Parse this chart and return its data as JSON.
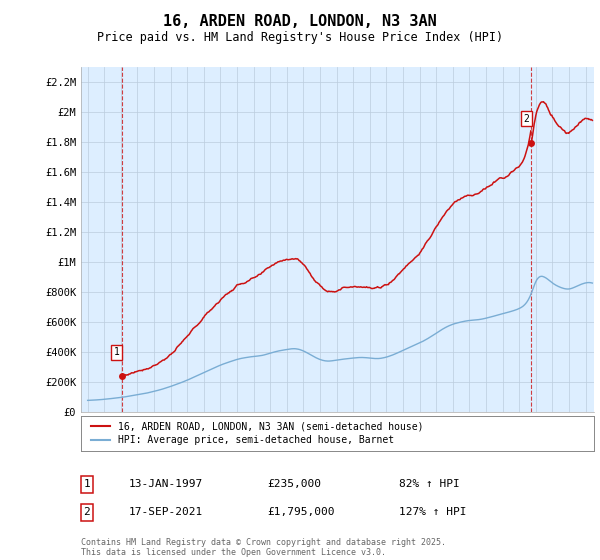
{
  "title": "16, ARDEN ROAD, LONDON, N3 3AN",
  "subtitle": "Price paid vs. HM Land Registry's House Price Index (HPI)",
  "ylim": [
    0,
    2300000
  ],
  "yticks": [
    0,
    200000,
    400000,
    600000,
    800000,
    1000000,
    1200000,
    1400000,
    1600000,
    1800000,
    2000000,
    2200000
  ],
  "ytick_labels": [
    "£0",
    "£200K",
    "£400K",
    "£600K",
    "£800K",
    "£1M",
    "£1.2M",
    "£1.4M",
    "£1.6M",
    "£1.8M",
    "£2M",
    "£2.2M"
  ],
  "xlim_left": 1994.6,
  "xlim_right": 2025.5,
  "sale1_date": 1997.04,
  "sale1_price": 235000,
  "sale1_label": "1",
  "sale2_date": 2021.72,
  "sale2_price": 1795000,
  "sale2_label": "2",
  "hpi_color": "#7aadd4",
  "price_color": "#cc1111",
  "plot_bg_color": "#ddeeff",
  "legend_line1": "16, ARDEN ROAD, LONDON, N3 3AN (semi-detached house)",
  "legend_line2": "HPI: Average price, semi-detached house, Barnet",
  "annotation1_date": "13-JAN-1997",
  "annotation1_price": "£235,000",
  "annotation1_hpi": "82% ↑ HPI",
  "annotation2_date": "17-SEP-2021",
  "annotation2_price": "£1,795,000",
  "annotation2_hpi": "127% ↑ HPI",
  "footer": "Contains HM Land Registry data © Crown copyright and database right 2025.\nThis data is licensed under the Open Government Licence v3.0.",
  "background_color": "#ffffff",
  "grid_color": "#bbccdd"
}
